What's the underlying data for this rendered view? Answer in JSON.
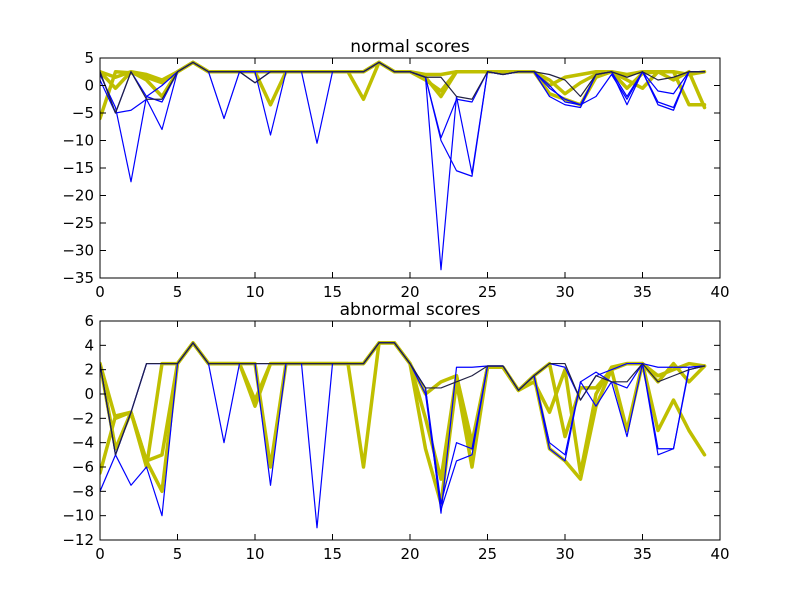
{
  "chart_data": [
    {
      "type": "line",
      "title": "normal scores",
      "xlabel": "",
      "ylabel": "",
      "xlim": [
        0,
        40
      ],
      "ylim": [
        -35,
        5
      ],
      "xticks": [
        0,
        5,
        10,
        15,
        20,
        25,
        30,
        35,
        40
      ],
      "yticks": [
        5,
        0,
        -5,
        -10,
        -15,
        -20,
        -25,
        -30,
        -35
      ],
      "xtick_labels": [
        "0",
        "5",
        "10",
        "15",
        "20",
        "25",
        "30",
        "35",
        "40"
      ],
      "ytick_labels": [
        "5",
        "0",
        "−5",
        "−10",
        "−15",
        "−20",
        "−25",
        "−30",
        "−35"
      ],
      "grid": false,
      "x": [
        0,
        1,
        2,
        3,
        4,
        5,
        6,
        7,
        8,
        9,
        10,
        11,
        12,
        13,
        14,
        15,
        16,
        17,
        18,
        19,
        20,
        21,
        22,
        23,
        24,
        25,
        26,
        27,
        28,
        29,
        30,
        31,
        32,
        33,
        34,
        35,
        36,
        37,
        38,
        39
      ],
      "series": [
        {
          "color": "#bfbf00",
          "width": 3.5,
          "values": [
            -6,
            2.5,
            2.3,
            1.5,
            0.5,
            2.5,
            4.2,
            2.5,
            2.5,
            2.5,
            2.5,
            -3.5,
            2.5,
            2.5,
            2.5,
            2.5,
            2.5,
            -2.5,
            4.2,
            2.5,
            2.5,
            1.5,
            -2,
            2.5,
            2.5,
            2.5,
            2.5,
            2.5,
            2.5,
            -1.5,
            -2.5,
            -3.5,
            1.5,
            2.5,
            -0.5,
            2.2,
            2.5,
            2.5,
            -3.5,
            -3.5
          ]
        },
        {
          "color": "#bfbf00",
          "width": 3.5,
          "values": [
            2.5,
            1.5,
            2.5,
            2.0,
            1.0,
            2.5,
            4.2,
            2.5,
            2.5,
            2.5,
            2.5,
            2.5,
            2.5,
            2.5,
            2.5,
            2.5,
            2.5,
            2.5,
            4.2,
            2.5,
            2.5,
            2.0,
            2.0,
            2.5,
            2.5,
            2.5,
            2.5,
            2.5,
            2.5,
            1.0,
            -1.5,
            0.5,
            2.0,
            2.5,
            2.0,
            2.5,
            2.5,
            2.5,
            2.0,
            2.5
          ]
        },
        {
          "color": "#bfbf00",
          "width": 3.5,
          "values": [
            2.5,
            -0.5,
            2.5,
            1.0,
            -2.0,
            2.5,
            4.2,
            2.5,
            2.5,
            2.5,
            2.5,
            2.5,
            2.5,
            2.5,
            2.5,
            2.5,
            2.5,
            2.5,
            4.2,
            2.5,
            2.5,
            1.0,
            -1.0,
            2.5,
            2.5,
            2.5,
            2.5,
            2.5,
            2.5,
            0.0,
            1.5,
            2.0,
            2.5,
            2.5,
            1.0,
            -0.5,
            2.5,
            1.0,
            2.5,
            -4.0
          ]
        },
        {
          "color": "#0000ff",
          "width": 1.2,
          "values": [
            2.5,
            -5.0,
            -4.5,
            -2.5,
            -8.0,
            2.5,
            4.2,
            2.5,
            -6.0,
            2.5,
            2.5,
            -9.0,
            2.5,
            2.5,
            -10.5,
            2.5,
            2.5,
            2.5,
            4.2,
            2.5,
            2.5,
            1.5,
            -10.0,
            -15.5,
            -16.5,
            2.5,
            2.0,
            2.5,
            2.5,
            -2.0,
            -3.5,
            -4.0,
            2.0,
            2.5,
            -2.0,
            2.5,
            -1.0,
            -1.5,
            2.5,
            2.5
          ]
        },
        {
          "color": "#0000ff",
          "width": 1.2,
          "values": [
            1.0,
            -5.0,
            2.5,
            -2.0,
            -3.0,
            2.5,
            4.2,
            2.5,
            2.5,
            2.5,
            0.5,
            2.5,
            2.5,
            2.5,
            2.5,
            2.5,
            2.5,
            2.5,
            4.2,
            2.5,
            2.5,
            1.5,
            -9.5,
            -2.5,
            -3.0,
            2.5,
            2.0,
            2.5,
            2.5,
            0.0,
            -3.0,
            -3.5,
            2.0,
            2.5,
            -3.5,
            2.5,
            -3.0,
            -4.0,
            2.5,
            2.5
          ]
        },
        {
          "color": "#0000ff",
          "width": 1.2,
          "values": [
            2.0,
            -4.0,
            -17.5,
            -2.0,
            0.0,
            2.5,
            4.2,
            2.5,
            2.5,
            2.5,
            2.5,
            2.5,
            2.5,
            2.5,
            2.5,
            2.5,
            2.5,
            2.5,
            4.2,
            2.5,
            2.5,
            1.5,
            -33.5,
            -2.0,
            -16.0,
            2.5,
            2.0,
            2.5,
            2.5,
            -0.5,
            -2.5,
            -3.5,
            -2.0,
            2.0,
            -2.5,
            2.5,
            -3.5,
            -4.5,
            2.5,
            2.5
          ]
        },
        {
          "color": "#222244",
          "width": 1.2,
          "values": [
            2.5,
            -5.0,
            2.5,
            -2.5,
            -2.5,
            2.5,
            4.2,
            2.5,
            2.5,
            2.5,
            0.5,
            2.5,
            2.5,
            2.5,
            2.5,
            2.5,
            2.5,
            2.5,
            4.2,
            2.5,
            2.5,
            1.5,
            1.5,
            -2.0,
            -2.5,
            2.5,
            2.0,
            2.5,
            2.5,
            2.0,
            1.0,
            -2.0,
            2.0,
            2.5,
            1.5,
            2.5,
            1.0,
            1.5,
            2.5,
            2.5
          ]
        }
      ]
    },
    {
      "type": "line",
      "title": "abnormal scores",
      "xlabel": "",
      "ylabel": "",
      "xlim": [
        0,
        40
      ],
      "ylim": [
        -12,
        6
      ],
      "xticks": [
        0,
        5,
        10,
        15,
        20,
        25,
        30,
        35,
        40
      ],
      "yticks": [
        6,
        4,
        2,
        0,
        -2,
        -4,
        -6,
        -8,
        -10,
        -12
      ],
      "xtick_labels": [
        "0",
        "5",
        "10",
        "15",
        "20",
        "25",
        "30",
        "35",
        "40"
      ],
      "ytick_labels": [
        "6",
        "4",
        "2",
        "0",
        "−2",
        "−4",
        "−6",
        "−8",
        "−10",
        "−12"
      ],
      "grid": false,
      "x": [
        0,
        1,
        2,
        3,
        4,
        5,
        6,
        7,
        8,
        9,
        10,
        11,
        12,
        13,
        14,
        15,
        16,
        17,
        18,
        19,
        20,
        21,
        22,
        23,
        24,
        25,
        26,
        27,
        28,
        29,
        30,
        31,
        32,
        33,
        34,
        35,
        36,
        37,
        38,
        39
      ],
      "series": [
        {
          "color": "#bfbf00",
          "width": 3.5,
          "values": [
            -6.5,
            -1.8,
            -1.5,
            -5.5,
            -5.0,
            2.5,
            4.2,
            2.5,
            2.5,
            2.5,
            2.5,
            -6.0,
            2.5,
            2.5,
            2.5,
            2.5,
            2.5,
            -6.0,
            4.2,
            4.2,
            2.5,
            -4.5,
            -9.0,
            1.0,
            -6.0,
            2.2,
            2.2,
            0.3,
            1.5,
            -4.5,
            -5.5,
            -7.0,
            -1.0,
            2.0,
            -3.0,
            2.5,
            -3.0,
            -0.5,
            -3.0,
            -5.0
          ]
        },
        {
          "color": "#bfbf00",
          "width": 3.5,
          "values": [
            2.5,
            -2.0,
            -1.5,
            -6.0,
            2.5,
            2.5,
            4.2,
            2.5,
            2.5,
            2.5,
            -1.0,
            2.5,
            2.5,
            2.5,
            2.5,
            2.5,
            2.5,
            2.5,
            4.2,
            4.2,
            2.5,
            0.0,
            1.0,
            1.5,
            -4.0,
            2.2,
            2.2,
            0.3,
            1.5,
            2.5,
            -3.5,
            0.5,
            0.5,
            2.0,
            2.5,
            2.5,
            1.5,
            2.0,
            2.5,
            2.3
          ]
        },
        {
          "color": "#bfbf00",
          "width": 3.5,
          "values": [
            2.5,
            -4.5,
            -1.5,
            -5.5,
            -8.0,
            2.5,
            4.2,
            2.5,
            2.5,
            2.5,
            -0.5,
            2.5,
            2.5,
            2.5,
            2.5,
            2.5,
            2.5,
            2.5,
            4.2,
            4.2,
            2.5,
            -2.0,
            -7.0,
            1.5,
            -4.5,
            2.2,
            2.2,
            0.3,
            1.0,
            -1.5,
            2.0,
            -6.5,
            0.0,
            2.2,
            2.5,
            2.5,
            1.0,
            2.5,
            1.0,
            2.3
          ]
        },
        {
          "color": "#0000ff",
          "width": 1.2,
          "values": [
            -8.0,
            -5.0,
            -7.5,
            -6.0,
            -10.0,
            2.5,
            4.2,
            2.5,
            -4.0,
            2.5,
            2.5,
            -7.5,
            2.5,
            2.5,
            -11.0,
            2.5,
            2.5,
            2.5,
            4.2,
            4.2,
            2.5,
            0.0,
            -9.5,
            -5.5,
            -5.0,
            2.3,
            2.3,
            0.3,
            1.5,
            -4.5,
            -5.5,
            1.0,
            1.8,
            1.0,
            0.5,
            2.5,
            -5.0,
            -4.5,
            2.2,
            2.3
          ]
        },
        {
          "color": "#0000ff",
          "width": 1.2,
          "values": [
            2.5,
            -5.0,
            -1.5,
            2.5,
            2.5,
            2.5,
            4.2,
            2.5,
            2.5,
            2.5,
            2.5,
            2.5,
            2.5,
            2.5,
            2.5,
            2.5,
            2.5,
            2.5,
            4.2,
            4.2,
            2.5,
            0.5,
            -9.8,
            2.2,
            2.2,
            2.3,
            2.3,
            0.3,
            1.5,
            2.5,
            2.2,
            -0.5,
            1.5,
            2.0,
            2.5,
            2.5,
            2.2,
            2.2,
            2.2,
            2.3
          ]
        },
        {
          "color": "#0000ff",
          "width": 1.2,
          "values": [
            2.5,
            -5.0,
            -1.5,
            2.5,
            2.5,
            2.5,
            4.2,
            2.5,
            2.5,
            2.5,
            2.5,
            2.5,
            2.5,
            2.5,
            2.5,
            2.5,
            2.5,
            2.5,
            4.2,
            4.2,
            2.5,
            0.5,
            -9.0,
            -4.0,
            -4.5,
            2.3,
            2.3,
            0.3,
            1.5,
            -4.0,
            -5.0,
            1.0,
            -1.0,
            1.0,
            -3.5,
            2.5,
            -4.5,
            -4.5,
            2.0,
            2.3
          ]
        },
        {
          "color": "#222244",
          "width": 1.2,
          "values": [
            2.5,
            -5.0,
            -1.5,
            2.5,
            2.5,
            2.5,
            4.2,
            2.5,
            2.5,
            2.5,
            2.5,
            2.5,
            2.5,
            2.5,
            2.5,
            2.5,
            2.5,
            2.5,
            4.2,
            4.2,
            2.5,
            0.5,
            0.5,
            1.0,
            1.5,
            2.3,
            2.3,
            0.3,
            1.5,
            2.5,
            2.5,
            -0.5,
            1.5,
            1.0,
            1.0,
            2.5,
            1.0,
            1.5,
            2.0,
            2.3
          ]
        }
      ]
    }
  ]
}
